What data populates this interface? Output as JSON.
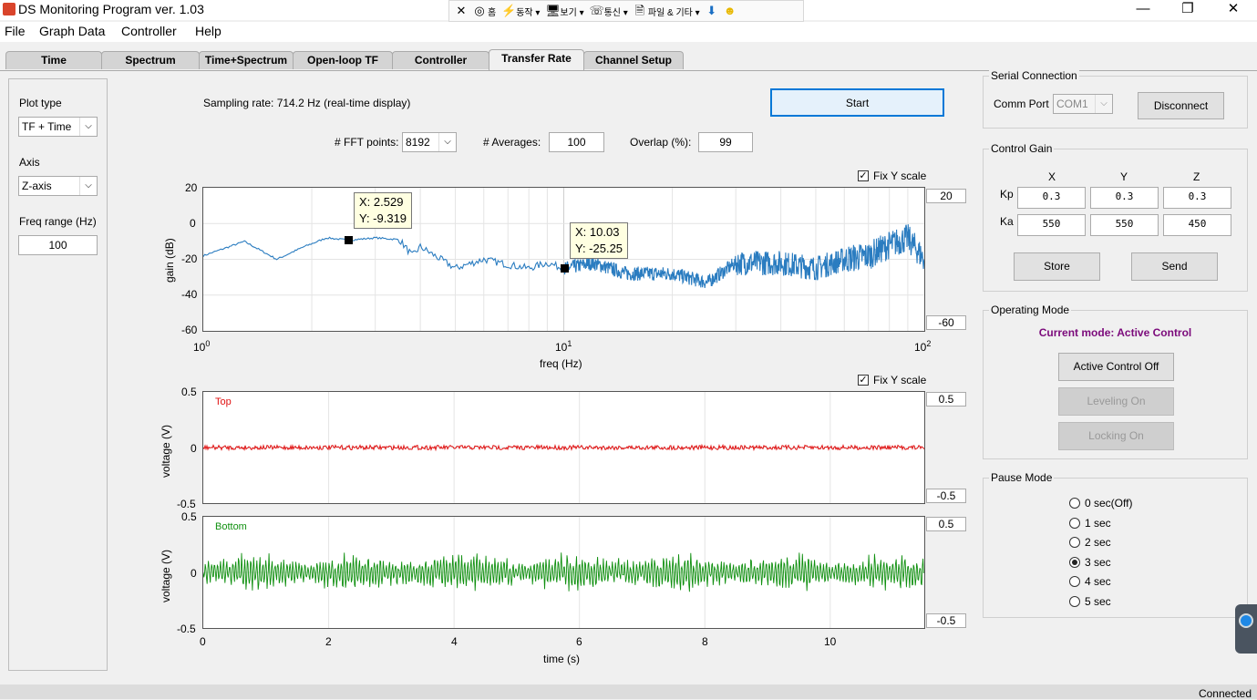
{
  "window": {
    "title": "DS Monitoring Program ver. 1.03",
    "minimize": "—",
    "restore": "❐",
    "close": "✕"
  },
  "ext_toolbar": {
    "items": [
      {
        "icon": "close-icon",
        "glyph": "✕",
        "label": ""
      },
      {
        "icon": "home-icon",
        "glyph": "◎",
        "label": "홈"
      },
      {
        "icon": "action-icon",
        "glyph": "⚡",
        "label": "동작 ▾"
      },
      {
        "icon": "view-icon",
        "glyph": "🖥",
        "label": "보기 ▾"
      },
      {
        "icon": "comm-icon",
        "glyph": "☏",
        "label": "통신 ▾"
      },
      {
        "icon": "file-icon",
        "glyph": "🗎",
        "label": "파일 & 기타 ▾"
      },
      {
        "icon": "download-icon",
        "glyph": "⬇",
        "label": ""
      },
      {
        "icon": "smiley-icon",
        "glyph": "☻",
        "label": ""
      }
    ],
    "mini": "⊞✕⌃"
  },
  "menu": [
    "File",
    "Graph Data",
    "Controller",
    "Help"
  ],
  "tabs": [
    "Time",
    "Spectrum",
    "Time+Spectrum",
    "Open-loop TF",
    "Controller",
    "Transfer Rate",
    "Channel Setup"
  ],
  "active_tab": "Transfer Rate",
  "left_panel": {
    "plot_type_label": "Plot type",
    "plot_type": "TF + Time",
    "axis_label": "Axis",
    "axis": "Z-axis",
    "freq_label": "Freq range (Hz)",
    "freq": "100"
  },
  "sampling": "Sampling rate: 714.2 Hz (real-time display)",
  "start_button": "Start",
  "fft": {
    "points_label": "# FFT points:",
    "points": "8192",
    "avg_label": "# Averages:",
    "avg": "100",
    "overlap_label": "Overlap (%):",
    "overlap": "99"
  },
  "plot1": {
    "fix_y": "Fix Y scale",
    "ylabel": "gain (dB)",
    "xlabel": "freq (Hz)",
    "yticks": [
      "20",
      "0",
      "-20",
      "-40",
      "-60"
    ],
    "xticks": [
      {
        "base": "10",
        "exp": "0"
      },
      {
        "base": "10",
        "exp": "1"
      },
      {
        "base": "10",
        "exp": "2"
      }
    ],
    "ymax": "20",
    "ymin": "-60",
    "tip1": {
      "x": "X: 2.529",
      "y": "Y: -9.319"
    },
    "tip2": {
      "x": "X: 10.03",
      "y": "Y: -25.25"
    }
  },
  "plot2": {
    "fix_y": "Fix Y scale",
    "ylabel": "voltage (V)",
    "title": "Top",
    "yticks": [
      "0.5",
      "0",
      "-0.5"
    ],
    "ymax": "0.5",
    "ymin": "-0.5"
  },
  "plot3": {
    "ylabel": "voltage (V)",
    "title": "Bottom",
    "yticks": [
      "0.5",
      "0",
      "-0.5"
    ],
    "ymax": "0.5",
    "ymin": "-0.5",
    "xlabel": "time (s)",
    "xticks": [
      "0",
      "2",
      "4",
      "6",
      "8",
      "10"
    ]
  },
  "serial": {
    "title": "Serial Connection",
    "port_label": "Comm Port",
    "port": "COM1",
    "disconnect": "Disconnect"
  },
  "gain": {
    "title": "Control Gain",
    "cols": [
      "X",
      "Y",
      "Z"
    ],
    "kp_label": "Kp",
    "ka_label": "Ka",
    "kp": [
      "0.3",
      "0.3",
      "0.3"
    ],
    "ka": [
      "550",
      "550",
      "450"
    ],
    "store": "Store",
    "send": "Send"
  },
  "mode": {
    "title": "Operating Mode",
    "current": "Current mode: Active Control",
    "active_off": "Active Control Off",
    "leveling": "Leveling On",
    "locking": "Locking On",
    "current_color": "#7b0a7b"
  },
  "pause": {
    "title": "Pause Mode",
    "options": [
      "0 sec(Off)",
      "1 sec",
      "2 sec",
      "3 sec",
      "4 sec",
      "5 sec"
    ],
    "selected": 3
  },
  "status": "Connected",
  "colors": {
    "tf": "#2a7cc0",
    "top": "#e01010",
    "bottom": "#109010"
  },
  "chart_data": [
    {
      "type": "line",
      "title": "",
      "xlabel": "freq (Hz)",
      "ylabel": "gain (dB)",
      "xscale": "log",
      "xlim": [
        1,
        100
      ],
      "ylim": [
        -60,
        20
      ],
      "grid": true,
      "series": [
        {
          "x": [
            1,
            1.3,
            1.6,
            1.9,
            2.2,
            2.529,
            3,
            3.5,
            3.8,
            4,
            5,
            6,
            7,
            8,
            9,
            10.03,
            12,
            15,
            20,
            25,
            30,
            40,
            50,
            60,
            70,
            80,
            90,
            100
          ],
          "y": [
            -18,
            -10,
            -20,
            -13,
            -8,
            -9.319,
            -8,
            -9,
            -18,
            -13,
            -25,
            -20,
            -23,
            -25,
            -22,
            -25.25,
            -22,
            -28,
            -28,
            -33,
            -22,
            -22,
            -25,
            -20,
            -18,
            -12,
            -8,
            -20
          ]
        }
      ]
    },
    {
      "type": "line",
      "title": "Top",
      "xlabel": "",
      "ylabel": "voltage (V)",
      "xlim": [
        0,
        11.5
      ],
      "ylim": [
        -0.5,
        0.5
      ],
      "series": [
        {
          "name": "Top",
          "x": [
            0,
            11.5
          ],
          "y": [
            0,
            0
          ]
        }
      ]
    },
    {
      "type": "line",
      "title": "Bottom",
      "xlabel": "time (s)",
      "ylabel": "voltage (V)",
      "xlim": [
        0,
        11.5
      ],
      "ylim": [
        -0.5,
        0.5
      ],
      "series": [
        {
          "name": "Bottom",
          "x": [
            0,
            11.5
          ],
          "y": [
            0,
            0
          ]
        }
      ]
    }
  ]
}
